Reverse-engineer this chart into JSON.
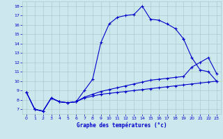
{
  "xlabel": "Graphe des températures (°c)",
  "background_color": "#cce8ee",
  "grid_color": "#aacccc",
  "line_color": "#0000cc",
  "xlim": [
    -0.5,
    23.5
  ],
  "ylim": [
    6.5,
    18.5
  ],
  "yticks": [
    7,
    8,
    9,
    10,
    11,
    12,
    13,
    14,
    15,
    16,
    17,
    18
  ],
  "xticks": [
    0,
    1,
    2,
    3,
    4,
    5,
    6,
    7,
    8,
    9,
    10,
    11,
    12,
    13,
    14,
    15,
    16,
    17,
    18,
    19,
    20,
    21,
    22,
    23
  ],
  "series1_x": [
    0,
    1,
    2,
    3,
    4,
    5,
    6,
    7,
    8,
    9,
    10,
    11,
    12,
    13,
    14,
    15,
    16,
    17,
    18,
    19
  ],
  "series1_y": [
    8.8,
    7.0,
    6.8,
    8.2,
    7.8,
    7.7,
    7.8,
    9.0,
    10.2,
    14.1,
    16.1,
    16.8,
    17.0,
    17.1,
    18.0,
    16.6,
    16.5,
    16.1,
    15.6,
    14.5
  ],
  "series2_x": [
    19,
    20,
    21,
    22,
    23
  ],
  "series2_y": [
    14.5,
    12.5,
    11.2,
    11.0,
    10.0
  ],
  "series3_x": [
    0,
    1,
    2,
    3,
    4,
    5,
    6,
    7,
    8,
    9,
    10,
    11,
    12,
    13,
    14,
    15,
    16,
    17,
    18,
    19,
    20,
    21,
    22,
    23
  ],
  "series3_y": [
    8.8,
    7.0,
    6.8,
    8.2,
    7.8,
    7.7,
    7.8,
    8.3,
    8.6,
    8.9,
    9.1,
    9.3,
    9.5,
    9.7,
    9.9,
    10.1,
    10.2,
    10.3,
    10.4,
    10.5,
    11.5,
    12.0,
    12.5,
    10.8
  ],
  "series4_x": [
    0,
    1,
    2,
    3,
    4,
    5,
    6,
    7,
    8,
    9,
    10,
    11,
    12,
    13,
    14,
    15,
    16,
    17,
    18,
    19,
    20,
    21,
    22,
    23
  ],
  "series4_y": [
    8.8,
    7.0,
    6.8,
    8.2,
    7.8,
    7.7,
    7.8,
    8.2,
    8.4,
    8.6,
    8.7,
    8.8,
    8.9,
    9.0,
    9.1,
    9.2,
    9.3,
    9.4,
    9.5,
    9.6,
    9.7,
    9.8,
    9.9,
    10.0
  ]
}
